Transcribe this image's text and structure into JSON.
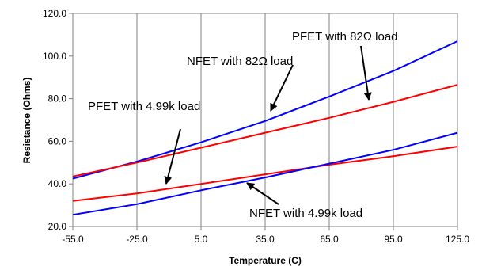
{
  "chart_data": {
    "type": "line",
    "xlabel": "Temperature (C)",
    "ylabel": "Resistance (Ohms)",
    "xlim": [
      -55,
      125
    ],
    "ylim": [
      20,
      120
    ],
    "x_ticks": [
      -55,
      -25,
      5,
      35,
      65,
      95,
      125
    ],
    "x_tick_labels": [
      "-55.0",
      "-25.0",
      "5.0",
      "35.0",
      "65.0",
      "95.0",
      "125.0"
    ],
    "y_ticks": [
      20,
      40,
      60,
      80,
      100,
      120
    ],
    "y_tick_labels": [
      "20.0",
      "40.0",
      "60.0",
      "80.0",
      "100.0",
      "120.0"
    ],
    "grid": "vertical",
    "series": [
      {
        "name": "NFET with 82Ω load",
        "color": "#0000ff",
        "x": [
          -55,
          -25,
          5,
          35,
          65,
          95,
          125
        ],
        "y": [
          42.5,
          50.5,
          59.5,
          69.5,
          81,
          93,
          107
        ]
      },
      {
        "name": "PFET with 82Ω load",
        "color": "#ff0000",
        "x": [
          -55,
          -25,
          5,
          35,
          65,
          95,
          125
        ],
        "y": [
          43.5,
          50,
          57,
          64,
          71,
          78.5,
          86.5
        ]
      },
      {
        "name": "PFET with 4.99k load",
        "color": "#ff0000",
        "x": [
          -55,
          -25,
          5,
          35,
          65,
          95,
          125
        ],
        "y": [
          32,
          35.5,
          40,
          44.5,
          49,
          53,
          57.5
        ]
      },
      {
        "name": "NFET with 4.99k load",
        "color": "#0000ff",
        "x": [
          -55,
          -25,
          5,
          35,
          65,
          95,
          125
        ],
        "y": [
          25.5,
          30.5,
          37,
          43,
          49.5,
          56,
          64
        ]
      }
    ],
    "annotations": [
      {
        "text": "NFET with 82Ω load",
        "points_to_x": 35,
        "points_to_y": 69.5
      },
      {
        "text": "PFET with 82Ω load",
        "points_to_x": 85,
        "points_to_y": 76
      },
      {
        "text": "PFET with 4.99k load",
        "points_to_x": -5,
        "points_to_y": 38.5
      },
      {
        "text": "NFET with 4.99k load",
        "points_to_x": 27,
        "points_to_y": 41
      }
    ]
  }
}
